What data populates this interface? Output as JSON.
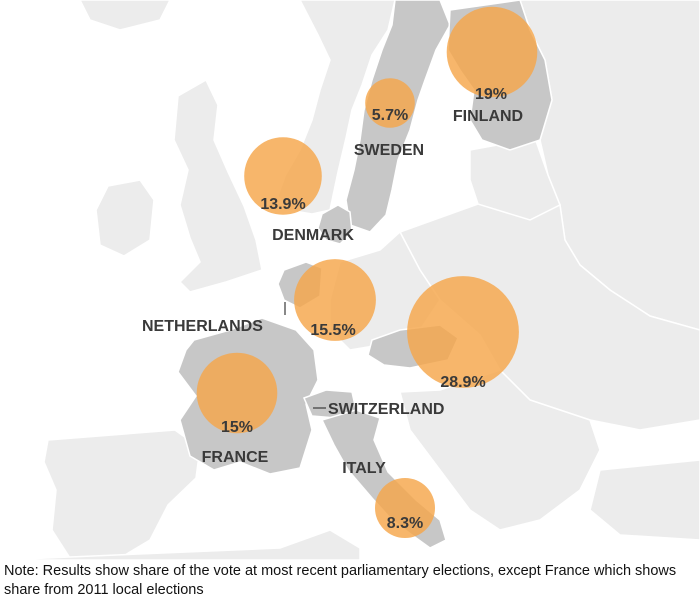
{
  "map": {
    "colors": {
      "sea": "#ffffff",
      "land": "#ececec",
      "highlight_land": "#c7c7c7",
      "border": "#ffffff",
      "bubble": "#f5a64a",
      "label": "#3a3a3a"
    },
    "countries": [
      {
        "id": "finland",
        "name": "FINLAND",
        "value": "19%",
        "share": 19
      },
      {
        "id": "sweden",
        "name": "SWEDEN",
        "value": "5.7%",
        "share": 5.7
      },
      {
        "id": "denmark",
        "name": "DENMARK",
        "value": "13.9%",
        "share": 13.9
      },
      {
        "id": "netherlands",
        "name": "NETHERLANDS",
        "value": "15.5%",
        "share": 15.5
      },
      {
        "id": "austria",
        "name": "",
        "value": "28.9%",
        "share": 28.9
      },
      {
        "id": "france",
        "name": "FRANCE",
        "value": "15%",
        "share": 15
      },
      {
        "id": "switzerland",
        "name": "SWITZERLAND",
        "value": "",
        "share": null
      },
      {
        "id": "italy",
        "name": "ITALY",
        "value": "8.3%",
        "share": 8.3
      }
    ]
  },
  "note": "Note: Results show share of the vote at most recent parliamentary elections, except France which shows share from 2011 local elections"
}
